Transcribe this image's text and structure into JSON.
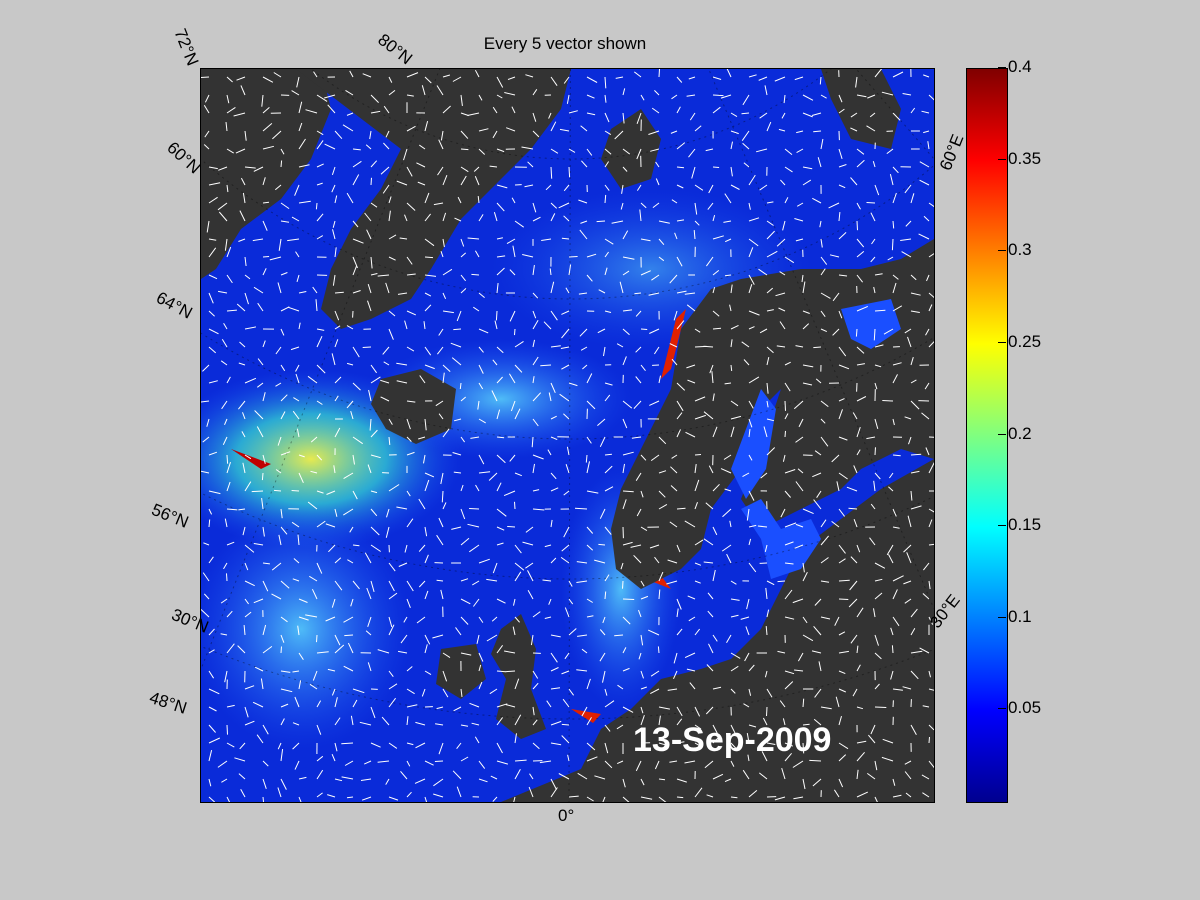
{
  "figure": {
    "title": "Every 5 vector shown",
    "date_stamp": "13-Sep-2009",
    "colors": {
      "background": "#c8c8c8",
      "land": "#333333",
      "ocean_low": "#0a2bd9"
    }
  },
  "map_labels": {
    "lat_72": "72°N",
    "lat_80": "80°N",
    "lat_60": "60°N",
    "lat_64": "64°N",
    "lat_56": "56°N",
    "lat_30": "30°N",
    "lat_48": "48°N",
    "lon_0": "0°",
    "lon_30e": "30°E",
    "lon_60e": "60°E"
  },
  "colorbar": {
    "ticks": [
      {
        "value": 0.4,
        "label": "0.4"
      },
      {
        "value": 0.35,
        "label": "0.35"
      },
      {
        "value": 0.3,
        "label": "0.3"
      },
      {
        "value": 0.25,
        "label": "0.25"
      },
      {
        "value": 0.2,
        "label": "0.2"
      },
      {
        "value": 0.15,
        "label": "0.15"
      },
      {
        "value": 0.1,
        "label": "0.1"
      },
      {
        "value": 0.05,
        "label": "0.05"
      }
    ],
    "range": [
      0,
      0.4
    ],
    "colormap": "jet"
  }
}
